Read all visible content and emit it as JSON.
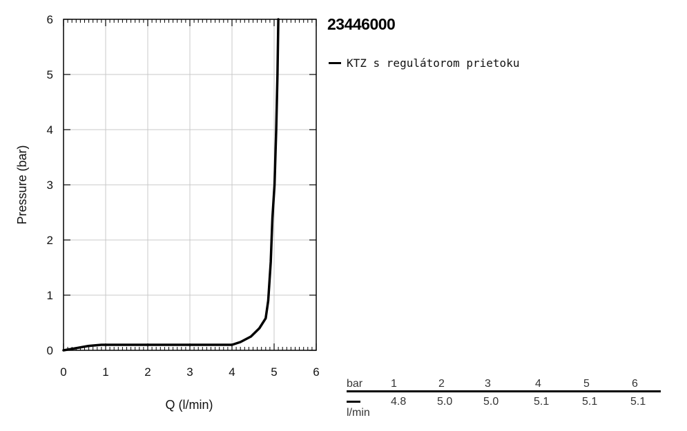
{
  "chart_data": {
    "type": "line",
    "title": "23446000",
    "xlabel": "Q (l/min)",
    "ylabel": "Pressure (bar)",
    "xlim": [
      0,
      6
    ],
    "ylim": [
      0,
      6
    ],
    "grid": true,
    "legend_position": "top-right",
    "x_ticks": [
      "0",
      "1",
      "2",
      "3",
      "4",
      "5",
      "6"
    ],
    "y_ticks": [
      "0",
      "1",
      "2",
      "3",
      "4",
      "5",
      "6"
    ],
    "series": [
      {
        "name": "KTZ s regulátorom prietoku",
        "color": "#000000",
        "points": [
          [
            0,
            0
          ],
          [
            0.3,
            0.04
          ],
          [
            0.6,
            0.08
          ],
          [
            0.9,
            0.1
          ],
          [
            1.5,
            0.1
          ],
          [
            2.5,
            0.1
          ],
          [
            3.5,
            0.1
          ],
          [
            4.0,
            0.1
          ],
          [
            4.2,
            0.15
          ],
          [
            4.45,
            0.25
          ],
          [
            4.65,
            0.4
          ],
          [
            4.8,
            0.58
          ],
          [
            4.86,
            0.9
          ],
          [
            4.92,
            1.6
          ],
          [
            4.96,
            2.4
          ],
          [
            5.01,
            3.0
          ],
          [
            5.05,
            4.0
          ],
          [
            5.08,
            5.0
          ],
          [
            5.1,
            6.0
          ]
        ]
      }
    ]
  },
  "flow_table": {
    "pressure_label": "bar",
    "flow_unit_label": "l/min",
    "pressures": [
      "1",
      "2",
      "3",
      "4",
      "5",
      "6"
    ],
    "flows": [
      "4.8",
      "5.0",
      "5.0",
      "5.1",
      "5.1",
      "5.1"
    ]
  }
}
